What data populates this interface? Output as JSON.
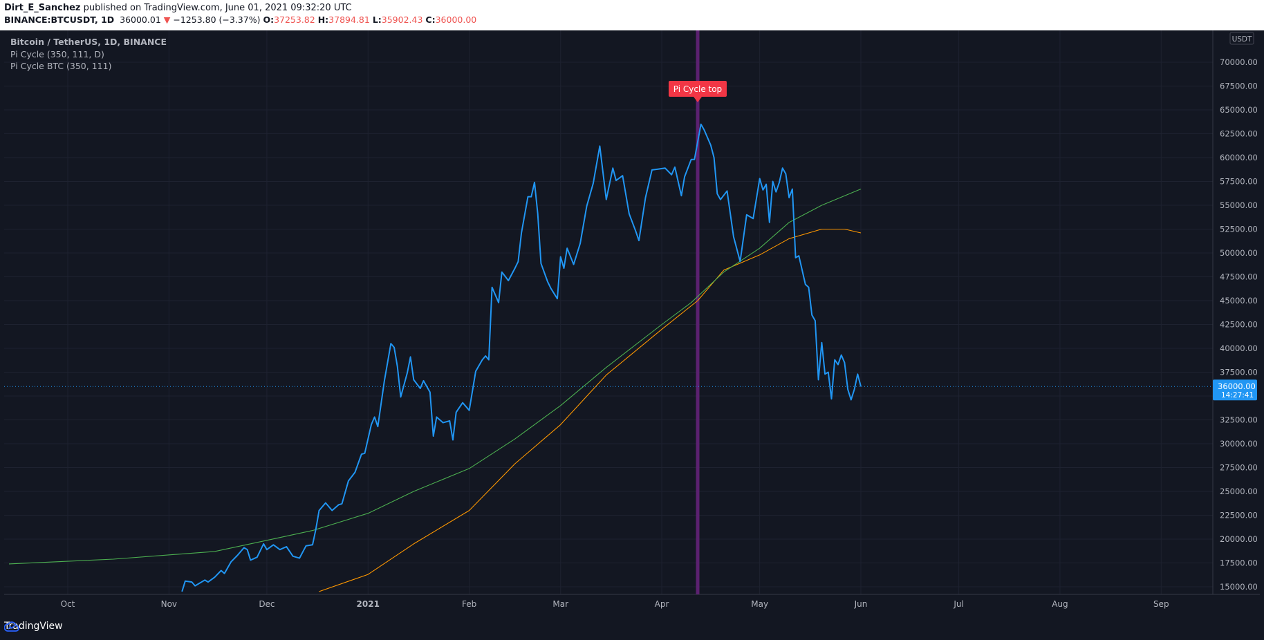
{
  "header": {
    "author": "Dirt_E_Sanchez",
    "published_text": " published on TradingView.com, June 01, 2021 09:32:20 UTC",
    "symbol": "BINANCE:BTCUSDT, 1D",
    "last": "36000.01",
    "change": "−1253.80 (−3.37%)",
    "o_label": "O:",
    "o": "37253.82",
    "h_label": "H:",
    "h": "37894.81",
    "l_label": "L:",
    "l": "35902.43",
    "c_label": "C:",
    "c": "36000.00",
    "down_arrow": "▼"
  },
  "legend": {
    "line1": "Bitcoin / TetherUS, 1D, BINANCE",
    "line2": "Pi Cycle (350, 111, D)",
    "line3": "Pi Cycle BTC (350, 111)"
  },
  "footer": {
    "logo_text": "TradingView",
    "logo_icon": "tradingview-cloud-icon"
  },
  "colors": {
    "background": "#131722",
    "price": "#2196f3",
    "sma_350x2": "#4caf50",
    "sma_111": "#ff9800",
    "signal_band": "#5b2170",
    "marker": "#f23645",
    "last_price_tag": "#2196f3"
  },
  "chart_data": {
    "type": "line",
    "x_axis": {
      "ticks": [
        "Oct",
        "Nov",
        "Dec",
        "2021",
        "Feb",
        "Mar",
        "Apr",
        "May",
        "Jun",
        "Jul",
        "Aug",
        "Sep"
      ],
      "tick_dates": [
        "2020-10-01",
        "2020-11-01",
        "2020-12-01",
        "2021-01-01",
        "2021-02-01",
        "2021-03-01",
        "2021-04-01",
        "2021-05-01",
        "2021-06-01",
        "2021-07-01",
        "2021-08-01",
        "2021-09-01"
      ]
    },
    "y_axis": {
      "currency": "USDT",
      "ticks": [
        "15000.00",
        "17500.00",
        "20000.00",
        "22500.00",
        "25000.00",
        "27500.00",
        "30000.00",
        "32500.00",
        "35000.00",
        "37500.00",
        "40000.00",
        "42500.00",
        "45000.00",
        "47500.00",
        "50000.00",
        "52500.00",
        "55000.00",
        "57500.00",
        "60000.00",
        "62500.00",
        "65000.00",
        "67500.00",
        "70000.00"
      ],
      "ylim": [
        14500,
        72500
      ]
    },
    "last_price_tag": {
      "value": "36000.00",
      "countdown": "14:27:41"
    },
    "annotation": {
      "text": "Pi Cycle top",
      "date": "2021-04-12"
    },
    "series": [
      {
        "name": "BTCUSDT",
        "points": [
          [
            "2020-11-05",
            14500
          ],
          [
            "2020-11-06",
            15600
          ],
          [
            "2020-11-08",
            15500
          ],
          [
            "2020-11-09",
            15100
          ],
          [
            "2020-11-10",
            15300
          ],
          [
            "2020-11-12",
            15700
          ],
          [
            "2020-11-13",
            15500
          ],
          [
            "2020-11-15",
            16000
          ],
          [
            "2020-11-17",
            16700
          ],
          [
            "2020-11-18",
            16400
          ],
          [
            "2020-11-20",
            17600
          ],
          [
            "2020-11-22",
            18300
          ],
          [
            "2020-11-24",
            19100
          ],
          [
            "2020-11-25",
            18900
          ],
          [
            "2020-11-26",
            17800
          ],
          [
            "2020-11-28",
            18100
          ],
          [
            "2020-11-30",
            19500
          ],
          [
            "2020-12-01",
            18900
          ],
          [
            "2020-12-03",
            19400
          ],
          [
            "2020-12-05",
            18900
          ],
          [
            "2020-12-07",
            19200
          ],
          [
            "2020-12-09",
            18200
          ],
          [
            "2020-12-11",
            18000
          ],
          [
            "2020-12-13",
            19300
          ],
          [
            "2020-12-15",
            19400
          ],
          [
            "2020-12-16",
            21000
          ],
          [
            "2020-12-17",
            23000
          ],
          [
            "2020-12-19",
            23800
          ],
          [
            "2020-12-21",
            23000
          ],
          [
            "2020-12-23",
            23600
          ],
          [
            "2020-12-24",
            23700
          ],
          [
            "2020-12-26",
            26100
          ],
          [
            "2020-12-28",
            27000
          ],
          [
            "2020-12-30",
            28900
          ],
          [
            "2020-12-31",
            29000
          ],
          [
            "2021-01-02",
            32000
          ],
          [
            "2021-01-03",
            32800
          ],
          [
            "2021-01-04",
            31800
          ],
          [
            "2021-01-06",
            36600
          ],
          [
            "2021-01-08",
            40500
          ],
          [
            "2021-01-09",
            40100
          ],
          [
            "2021-01-10",
            38100
          ],
          [
            "2021-01-11",
            34900
          ],
          [
            "2021-01-13",
            37400
          ],
          [
            "2021-01-14",
            39100
          ],
          [
            "2021-01-15",
            36700
          ],
          [
            "2021-01-17",
            35800
          ],
          [
            "2021-01-18",
            36600
          ],
          [
            "2021-01-20",
            35400
          ],
          [
            "2021-01-21",
            30800
          ],
          [
            "2021-01-22",
            32800
          ],
          [
            "2021-01-24",
            32200
          ],
          [
            "2021-01-26",
            32400
          ],
          [
            "2021-01-27",
            30400
          ],
          [
            "2021-01-28",
            33300
          ],
          [
            "2021-01-30",
            34300
          ],
          [
            "2021-02-01",
            33500
          ],
          [
            "2021-02-03",
            37600
          ],
          [
            "2021-02-05",
            38800
          ],
          [
            "2021-02-06",
            39200
          ],
          [
            "2021-02-07",
            38800
          ],
          [
            "2021-02-08",
            46400
          ],
          [
            "2021-02-10",
            44800
          ],
          [
            "2021-02-11",
            48000
          ],
          [
            "2021-02-13",
            47100
          ],
          [
            "2021-02-15",
            48400
          ],
          [
            "2021-02-16",
            49100
          ],
          [
            "2021-02-17",
            52100
          ],
          [
            "2021-02-19",
            55900
          ],
          [
            "2021-02-20",
            55900
          ],
          [
            "2021-02-21",
            57400
          ],
          [
            "2021-02-22",
            54100
          ],
          [
            "2021-02-23",
            48900
          ],
          [
            "2021-02-25",
            47000
          ],
          [
            "2021-02-26",
            46300
          ],
          [
            "2021-02-28",
            45200
          ],
          [
            "2021-03-01",
            49600
          ],
          [
            "2021-03-02",
            48400
          ],
          [
            "2021-03-03",
            50500
          ],
          [
            "2021-03-05",
            48800
          ],
          [
            "2021-03-07",
            51000
          ],
          [
            "2021-03-09",
            54900
          ],
          [
            "2021-03-11",
            57300
          ],
          [
            "2021-03-13",
            61200
          ],
          [
            "2021-03-15",
            55600
          ],
          [
            "2021-03-17",
            58900
          ],
          [
            "2021-03-18",
            57600
          ],
          [
            "2021-03-20",
            58100
          ],
          [
            "2021-03-22",
            54100
          ],
          [
            "2021-03-24",
            52300
          ],
          [
            "2021-03-25",
            51300
          ],
          [
            "2021-03-27",
            55800
          ],
          [
            "2021-03-29",
            58700
          ],
          [
            "2021-03-31",
            58800
          ],
          [
            "2021-04-02",
            58900
          ],
          [
            "2021-04-04",
            58200
          ],
          [
            "2021-04-05",
            59000
          ],
          [
            "2021-04-07",
            56000
          ],
          [
            "2021-04-08",
            58000
          ],
          [
            "2021-04-10",
            59800
          ],
          [
            "2021-04-11",
            59800
          ],
          [
            "2021-04-13",
            63500
          ],
          [
            "2021-04-14",
            62900
          ],
          [
            "2021-04-16",
            61300
          ],
          [
            "2021-04-17",
            60000
          ],
          [
            "2021-04-18",
            56200
          ],
          [
            "2021-04-19",
            55600
          ],
          [
            "2021-04-21",
            56500
          ],
          [
            "2021-04-23",
            51700
          ],
          [
            "2021-04-25",
            49100
          ],
          [
            "2021-04-27",
            54000
          ],
          [
            "2021-04-29",
            53600
          ],
          [
            "2021-05-01",
            57800
          ],
          [
            "2021-05-02",
            56600
          ],
          [
            "2021-05-03",
            57200
          ],
          [
            "2021-05-04",
            53200
          ],
          [
            "2021-05-05",
            57500
          ],
          [
            "2021-05-06",
            56400
          ],
          [
            "2021-05-07",
            57400
          ],
          [
            "2021-05-08",
            58900
          ],
          [
            "2021-05-09",
            58300
          ],
          [
            "2021-05-10",
            55800
          ],
          [
            "2021-05-11",
            56700
          ],
          [
            "2021-05-12",
            49500
          ],
          [
            "2021-05-13",
            49700
          ],
          [
            "2021-05-15",
            46700
          ],
          [
            "2021-05-16",
            46400
          ],
          [
            "2021-05-17",
            43500
          ],
          [
            "2021-05-18",
            42900
          ],
          [
            "2021-05-19",
            36700
          ],
          [
            "2021-05-20",
            40600
          ],
          [
            "2021-05-21",
            37300
          ],
          [
            "2021-05-22",
            37500
          ],
          [
            "2021-05-23",
            34700
          ],
          [
            "2021-05-24",
            38800
          ],
          [
            "2021-05-25",
            38300
          ],
          [
            "2021-05-26",
            39300
          ],
          [
            "2021-05-27",
            38500
          ],
          [
            "2021-05-28",
            35700
          ],
          [
            "2021-05-29",
            34600
          ],
          [
            "2021-05-30",
            35700
          ],
          [
            "2021-05-31",
            37300
          ],
          [
            "2021-06-01",
            36000
          ]
        ]
      },
      {
        "name": "Pi Cycle (350, 111, D)",
        "points": [
          [
            "2020-09-13",
            17400
          ],
          [
            "2020-10-15",
            17900
          ],
          [
            "2020-11-15",
            18700
          ],
          [
            "2020-11-30",
            19800
          ],
          [
            "2020-12-15",
            20900
          ],
          [
            "2021-01-01",
            22700
          ],
          [
            "2021-01-15",
            25000
          ],
          [
            "2021-02-01",
            27400
          ],
          [
            "2021-02-15",
            30500
          ],
          [
            "2021-03-01",
            34000
          ],
          [
            "2021-03-15",
            38000
          ],
          [
            "2021-04-01",
            42500
          ],
          [
            "2021-04-10",
            44800
          ],
          [
            "2021-04-20",
            48000
          ],
          [
            "2021-05-01",
            50500
          ],
          [
            "2021-05-10",
            53200
          ],
          [
            "2021-05-20",
            55000
          ],
          [
            "2021-06-01",
            56700
          ]
        ]
      },
      {
        "name": "Pi Cycle BTC (350, 111)",
        "points": [
          [
            "2020-12-17",
            14500
          ],
          [
            "2021-01-01",
            16300
          ],
          [
            "2021-01-15",
            19500
          ],
          [
            "2021-02-01",
            23000
          ],
          [
            "2021-02-15",
            27900
          ],
          [
            "2021-03-01",
            32000
          ],
          [
            "2021-03-15",
            37200
          ],
          [
            "2021-04-01",
            42000
          ],
          [
            "2021-04-12",
            45000
          ],
          [
            "2021-04-20",
            48200
          ],
          [
            "2021-05-01",
            49800
          ],
          [
            "2021-05-10",
            51500
          ],
          [
            "2021-05-20",
            52500
          ],
          [
            "2021-05-27",
            52500
          ],
          [
            "2021-06-01",
            52100
          ]
        ]
      }
    ]
  }
}
